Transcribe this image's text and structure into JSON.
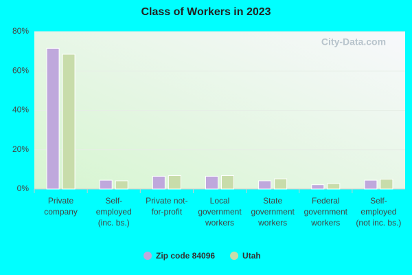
{
  "chart_data": {
    "type": "bar",
    "title": "Class of Workers in 2023",
    "watermark": "City-Data.com",
    "categories": [
      "Private company",
      "Self-employed (inc. bs.)",
      "Private not-for-profit",
      "Local government workers",
      "State government workers",
      "Federal government workers",
      "Self-employed (not inc. bs.)"
    ],
    "series": [
      {
        "name": "Zip code 84096",
        "color": "#bfa8dc",
        "values": [
          71.5,
          4.5,
          6.5,
          6.5,
          4.2,
          2.2,
          4.5
        ]
      },
      {
        "name": "Utah",
        "color": "#c8dcaa",
        "values": [
          68.5,
          4.2,
          6.8,
          6.8,
          5.2,
          2.8,
          5.0
        ]
      }
    ],
    "ylim": [
      0,
      80
    ],
    "yticks": [
      {
        "value": 0,
        "label": "0%"
      },
      {
        "value": 20,
        "label": "20%"
      },
      {
        "value": 40,
        "label": "40%"
      },
      {
        "value": 60,
        "label": "60%"
      },
      {
        "value": 80,
        "label": "80%"
      }
    ],
    "grid": true,
    "legend": "bottom"
  }
}
